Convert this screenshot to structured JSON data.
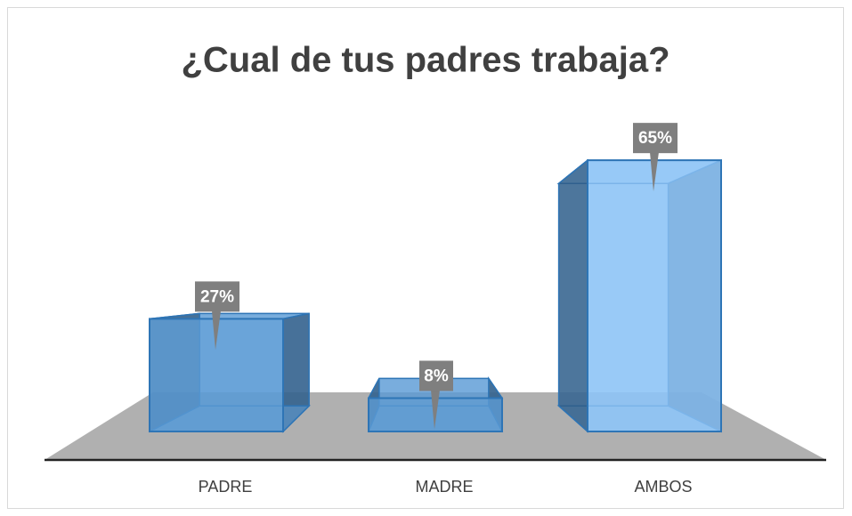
{
  "chart_data": {
    "type": "bar3d",
    "title": "¿Cual de tus padres trabaja?",
    "categories": [
      "PADRE",
      "MADRE",
      "AMBOS"
    ],
    "values": [
      27,
      8,
      65
    ],
    "value_labels": [
      "27%",
      "8%",
      "65%"
    ],
    "colors": [
      "#5b9bd5",
      "#5b9bd5",
      "#8ec4f6"
    ]
  }
}
